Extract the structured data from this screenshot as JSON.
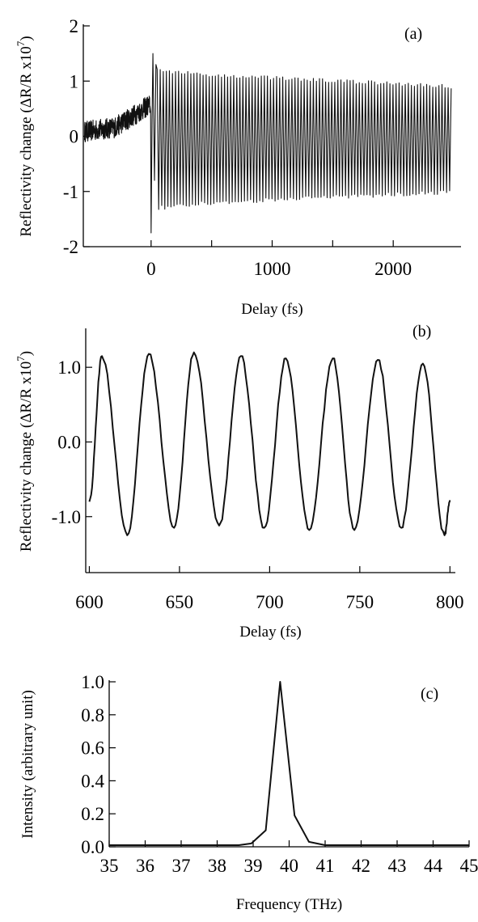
{
  "chart_data": [
    {
      "type": "line",
      "panel_label": "(a)",
      "xlabel": "Delay (fs)",
      "ylabel": "Reflectivity change (ΔR/R x10",
      "ylabel_superscript": "7",
      "ylabel_close": ")",
      "xlim": [
        -560,
        2560
      ],
      "ylim": [
        -2,
        2
      ],
      "x_ticks": [
        0,
        1000,
        2000
      ],
      "x_minor_ticks": [
        500,
        1500
      ],
      "y_ticks": [
        2,
        1,
        0,
        -1,
        -2
      ],
      "y_tick_labels": [
        "2",
        "1",
        "0",
        "-1",
        "-2"
      ],
      "series": [
        {
          "description_points": {
            "pre_zero_noise_level": [
              [
                -560,
                0.1
              ],
              [
                -300,
                0.2
              ],
              [
                -100,
                0.55
              ],
              [
                -20,
                0.7
              ]
            ],
            "spike_min": [
              0,
              -1.75
            ],
            "spike_max": [
              15,
              1.5
            ],
            "oscillation_period_fs": 25.3,
            "amplitude_envelope": [
              [
                50,
                1.25
              ],
              [
                500,
                1.15
              ],
              [
                1000,
                1.1
              ],
              [
                1500,
                1.05
              ],
              [
                2000,
                1.0
              ],
              [
                2500,
                0.95
              ]
            ],
            "offset": -0.05,
            "x_end": 2480
          }
        }
      ]
    },
    {
      "type": "line",
      "panel_label": "(b)",
      "xlabel": "Delay (fs)",
      "ylabel": "Reflectivity change (ΔR/R x10",
      "ylabel_superscript": "7",
      "ylabel_close": ")",
      "xlim": [
        598,
        803
      ],
      "ylim": [
        -1.75,
        1.5
      ],
      "x_ticks": [
        600,
        650,
        700,
        750,
        800
      ],
      "x_tick_labels": [
        "600",
        "650",
        "700",
        "750",
        "800"
      ],
      "y_ticks": [
        1.0,
        0.0,
        -1.0
      ],
      "y_tick_labels": [
        "1.0",
        "0.0",
        "-1.0"
      ],
      "series": [
        {
          "peaks": [
            [
              607,
              1.15
            ],
            [
              633,
              1.18
            ],
            [
              658,
              1.2
            ],
            [
              684,
              1.15
            ],
            [
              709,
              1.12
            ],
            [
              735,
              1.12
            ],
            [
              760,
              1.1
            ],
            [
              785,
              1.05
            ]
          ],
          "troughs": [
            [
              621,
              -1.25
            ],
            [
              647,
              -1.15
            ],
            [
              672,
              -1.12
            ],
            [
              697,
              -1.15
            ],
            [
              722,
              -1.18
            ],
            [
              747,
              -1.18
            ],
            [
              773,
              -1.15
            ],
            [
              797,
              -1.25
            ]
          ],
          "x_start": 600,
          "y_start": -0.8,
          "x_end": 800,
          "y_end": -0.78
        }
      ]
    },
    {
      "type": "line",
      "panel_label": "(c)",
      "xlabel": "Frequency (THz)",
      "ylabel": "Intensity (arbitrary unit)",
      "xlim": [
        35,
        45
      ],
      "ylim": [
        0,
        1.0
      ],
      "x_ticks": [
        35,
        36,
        37,
        38,
        39,
        40,
        41,
        42,
        43,
        44,
        45
      ],
      "x_tick_labels": [
        "35",
        "36",
        "37",
        "38",
        "39",
        "40",
        "41",
        "42",
        "43",
        "44",
        "45"
      ],
      "y_ticks": [
        0.0,
        0.2,
        0.4,
        0.6,
        0.8,
        1.0
      ],
      "y_tick_labels": [
        "0.0",
        "0.2",
        "0.4",
        "0.6",
        "0.8",
        "1.0"
      ],
      "series": [
        {
          "x": [
            35.0,
            36.0,
            37.0,
            38.0,
            38.6,
            38.95,
            39.35,
            39.75,
            40.15,
            40.55,
            41.0,
            42.0,
            43.0,
            44.0,
            45.0
          ],
          "y": [
            0.01,
            0.01,
            0.01,
            0.01,
            0.01,
            0.02,
            0.1,
            1.0,
            0.19,
            0.03,
            0.01,
            0.01,
            0.01,
            0.01,
            0.01
          ]
        }
      ]
    }
  ]
}
